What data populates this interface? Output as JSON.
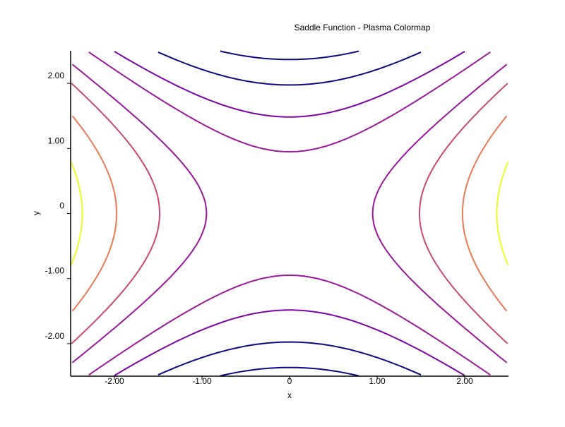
{
  "chart_data": {
    "type": "contour",
    "title": "Saddle Function - Plasma Colormap",
    "xlabel": "x",
    "ylabel": "y",
    "function": "x^2 - y^2",
    "xlim": [
      -2.5,
      2.5
    ],
    "ylim": [
      -2.5,
      2.5
    ],
    "x_ticks": [
      -2,
      -1,
      0,
      1,
      2
    ],
    "y_ticks": [
      -2,
      -1,
      0,
      1,
      2
    ],
    "x_tick_labels": [
      "-2.00",
      "-1.00",
      "0",
      "1.00",
      "2.00"
    ],
    "y_tick_labels": [
      "-2.00",
      "-1.00",
      "0",
      "1.00",
      "2.00"
    ],
    "grid": false,
    "levels": [
      {
        "value": -5.6,
        "color": "#0d0887"
      },
      {
        "value": -3.9,
        "color": "#0d0887"
      },
      {
        "value": -2.2,
        "color": "#7e03a8"
      },
      {
        "value": -0.9,
        "color": "#9c179e"
      },
      {
        "value": 0.9,
        "color": "#9c179e"
      },
      {
        "value": 2.2,
        "color": "#cc4778"
      },
      {
        "value": 3.9,
        "color": "#ed7953"
      },
      {
        "value": 5.6,
        "color": "#f0f921"
      }
    ]
  }
}
